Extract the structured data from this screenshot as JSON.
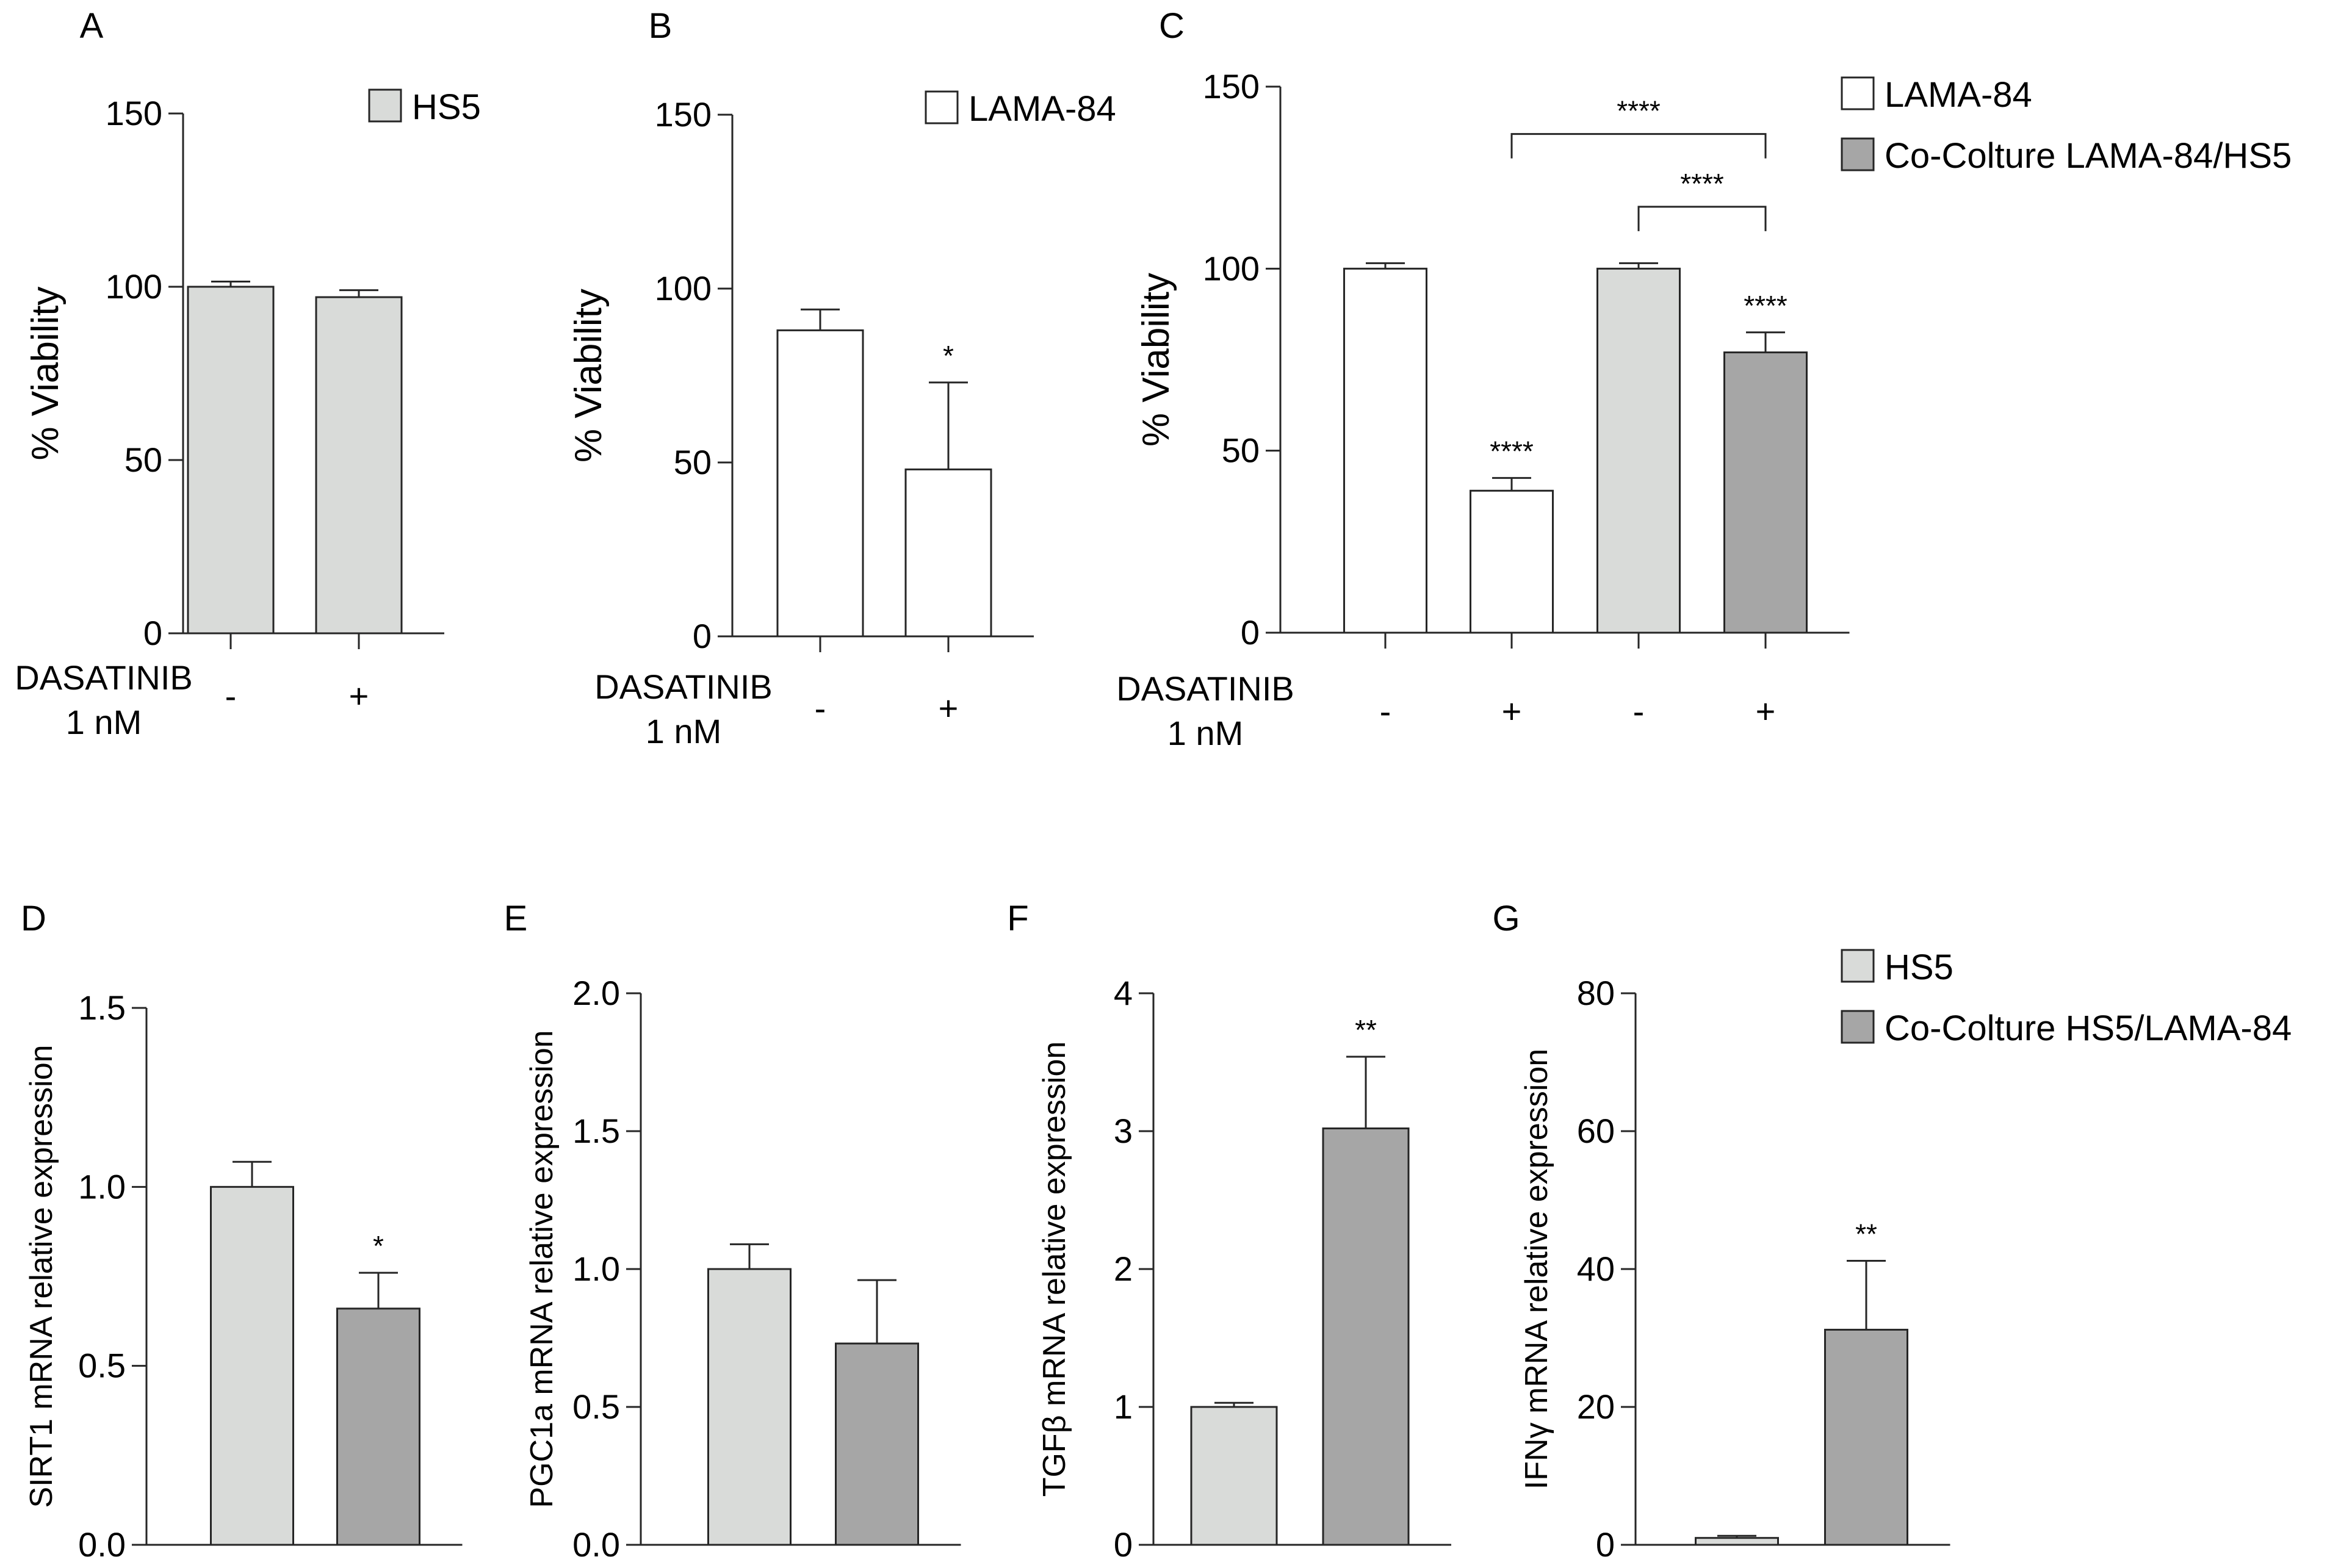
{
  "figure": {
    "title": ""
  },
  "colors": {
    "white": "#ffffff",
    "light_gray": "#d9dbd9",
    "dark_gray": "#a6a6a6",
    "stroke": "#262626"
  },
  "chart_data": [
    {
      "panel": "A",
      "type": "bar",
      "ylabel": "% Viability",
      "ylim": [
        0,
        150
      ],
      "yticks": [
        "0",
        "50",
        "100",
        "150"
      ],
      "condition_label": [
        "DASATINIB",
        "1 nM"
      ],
      "categories": [
        "-",
        "+"
      ],
      "values": [
        100,
        97
      ],
      "errors": [
        1.5,
        2
      ],
      "bar_colors": [
        "light_gray",
        "light_gray"
      ],
      "significance": [
        "",
        ""
      ],
      "legend": [
        {
          "label": "HS5",
          "color": "light_gray"
        }
      ],
      "brackets": []
    },
    {
      "panel": "B",
      "type": "bar",
      "ylabel": "% Viability",
      "ylim": [
        0,
        150
      ],
      "yticks": [
        "0",
        "50",
        "100",
        "150"
      ],
      "condition_label": [
        "DASATINIB",
        "1 nM"
      ],
      "categories": [
        "-",
        "+"
      ],
      "values": [
        88,
        48
      ],
      "errors": [
        6,
        25
      ],
      "bar_colors": [
        "white",
        "white"
      ],
      "significance": [
        "",
        "*"
      ],
      "legend": [
        {
          "label": "LAMA-84",
          "color": "white"
        }
      ],
      "brackets": []
    },
    {
      "panel": "C",
      "type": "bar",
      "ylabel": "% Viability",
      "ylim": [
        0,
        150
      ],
      "yticks": [
        "0",
        "50",
        "100",
        "150"
      ],
      "condition_label": [
        "DASATINIB",
        "1 nM"
      ],
      "categories": [
        "-",
        "+",
        "-",
        "+"
      ],
      "values": [
        100,
        39,
        100,
        77
      ],
      "errors": [
        1.5,
        3.5,
        1.5,
        5.5
      ],
      "bar_colors": [
        "white",
        "white",
        "light_gray",
        "dark_gray"
      ],
      "significance": [
        "",
        "****",
        "",
        "****"
      ],
      "legend": [
        {
          "label": "LAMA-84",
          "color": "white"
        },
        {
          "label": "Co-Colture LAMA-84/HS5",
          "color": "dark_gray"
        }
      ],
      "brackets": [
        {
          "from": 1,
          "to": 3,
          "label": "****",
          "y": 137
        },
        {
          "from": 2,
          "to": 3,
          "label": "****",
          "y": 117
        }
      ]
    },
    {
      "panel": "D",
      "type": "bar",
      "ylabel": "SIRT1 mRNA relative expression",
      "ylim": [
        0,
        1.5
      ],
      "yticks": [
        "0.0",
        "0.5",
        "1.0",
        "1.5"
      ],
      "categories": [
        "HS5",
        "Co-Colture HS5/LAMA-84"
      ],
      "values": [
        1.0,
        0.66
      ],
      "errors": [
        0.07,
        0.1
      ],
      "bar_colors": [
        "light_gray",
        "dark_gray"
      ],
      "significance": [
        "",
        "*"
      ],
      "legend": [],
      "brackets": []
    },
    {
      "panel": "E",
      "type": "bar",
      "ylabel": "PGC1a mRNA relative expression",
      "ylim": [
        0,
        2.0
      ],
      "yticks": [
        "0.0",
        "0.5",
        "1.0",
        "1.5",
        "2.0"
      ],
      "categories": [
        "HS5",
        "Co-Colture HS5/LAMA-84"
      ],
      "values": [
        1.0,
        0.73
      ],
      "errors": [
        0.09,
        0.23
      ],
      "bar_colors": [
        "light_gray",
        "dark_gray"
      ],
      "significance": [
        "",
        ""
      ],
      "legend": [],
      "brackets": []
    },
    {
      "panel": "F",
      "type": "bar",
      "ylabel": "TGFβ mRNA relative expression",
      "ylim": [
        0,
        4
      ],
      "yticks": [
        "0",
        "1",
        "2",
        "3",
        "4"
      ],
      "categories": [
        "HS5",
        "Co-Colture HS5/LAMA-84"
      ],
      "values": [
        1.0,
        3.02
      ],
      "errors": [
        0.03,
        0.52
      ],
      "bar_colors": [
        "light_gray",
        "dark_gray"
      ],
      "significance": [
        "",
        "**"
      ],
      "legend": [],
      "brackets": []
    },
    {
      "panel": "G",
      "type": "bar",
      "ylabel": "IFNγ mRNA relative expression",
      "ylim": [
        0,
        80
      ],
      "yticks": [
        "0",
        "20",
        "40",
        "60",
        "80"
      ],
      "categories": [
        "HS5",
        "Co-Colture HS5/LAMA-84"
      ],
      "values": [
        1.0,
        31.2
      ],
      "errors": [
        0.3,
        10
      ],
      "bar_colors": [
        "light_gray",
        "dark_gray"
      ],
      "significance": [
        "",
        "**"
      ],
      "legend": [
        {
          "label": "HS5",
          "color": "light_gray"
        },
        {
          "label": "Co-Colture HS5/LAMA-84",
          "color": "dark_gray"
        }
      ],
      "brackets": []
    }
  ]
}
